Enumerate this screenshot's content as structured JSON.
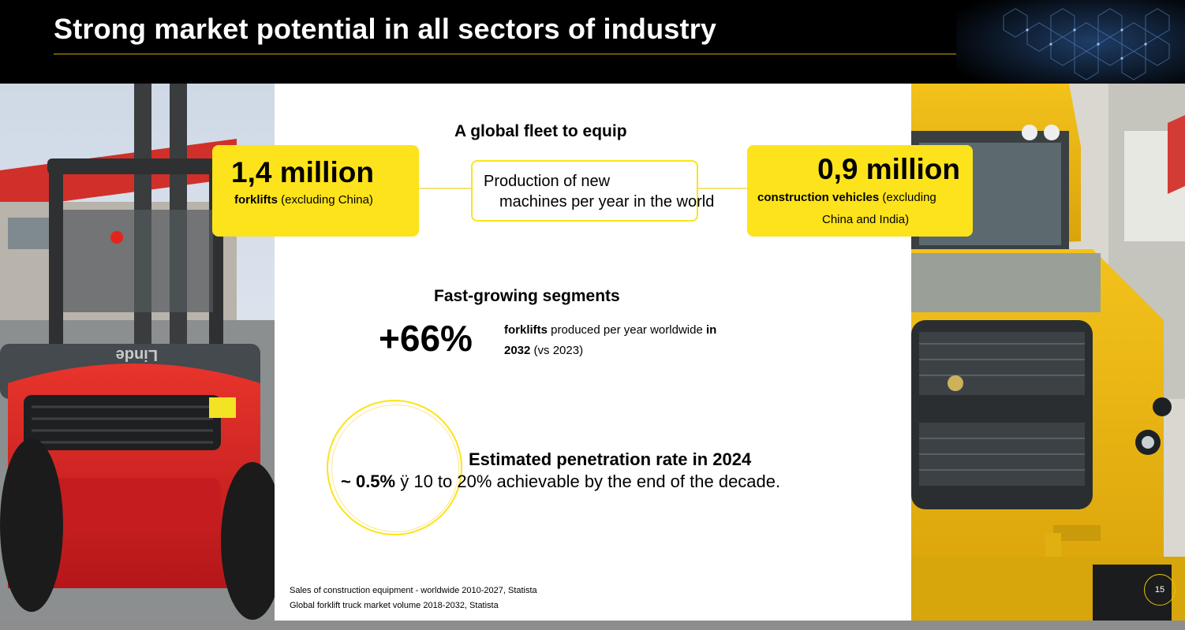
{
  "header": {
    "title": "Strong market potential in all sectors of industry"
  },
  "fleet": {
    "heading": "A global fleet to equip",
    "forklifts": {
      "value": "1,4 million",
      "label_bold": "forklifts",
      "label_rest": " (excluding China)"
    },
    "production": {
      "line1": "Production of new",
      "line2": "machines per year in the world"
    },
    "construction": {
      "value": "0,9 million",
      "label_bold": "construction vehicles",
      "label_rest": " (excluding",
      "label_line2": "China and India)"
    }
  },
  "segments": {
    "heading": "Fast-growing segments",
    "growth": "+66%",
    "desc_bold_1": "forklifts",
    "desc_rest_1": " produced per year worldwide ",
    "desc_bold_2": "in",
    "desc_bold_3": "2032",
    "desc_rest_2": " (vs 2023)"
  },
  "penetration": {
    "heading": "Estimated penetration rate in 2024",
    "rate": "~ 0.5%",
    "rest": " ÿ 10 to 20% achievable by the end of the decade."
  },
  "sources": [
    "Sales of construction equipment - worldwide 2010-2027, Statista",
    "Global forklift truck market volume 2018-2032, Statista"
  ],
  "page_number": "15",
  "colors": {
    "accent_yellow": "#fde31b",
    "header_bg": "#000000",
    "forklift_red": "#d9262a",
    "truck_yellow": "#e9b50f"
  },
  "images": {
    "left": "Red forklift photo",
    "right": "Yellow construction truck photo"
  }
}
